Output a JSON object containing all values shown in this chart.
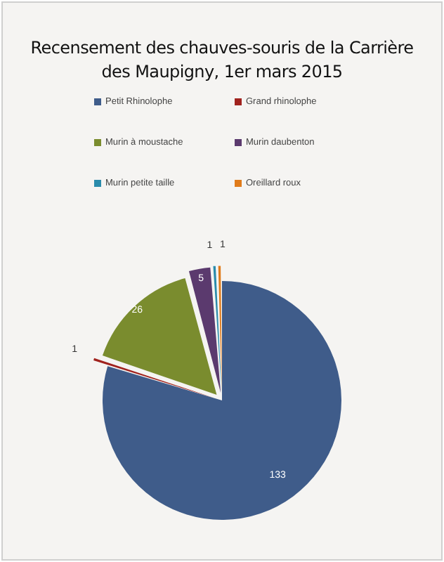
{
  "chart_data": {
    "type": "pie",
    "title": "Recensement des chauves-souris de la Carrière des Maupigny, 1er mars 2015",
    "categories": [
      "Petit Rhinolophe",
      "Grand rhinolophe",
      "Murin à moustache",
      "Murin daubenton",
      "Murin petite taille",
      "Oreillard roux"
    ],
    "values": [
      133,
      1,
      26,
      5,
      1,
      1
    ],
    "colors": [
      "#3f5c8a",
      "#a0221e",
      "#7a8c2e",
      "#5b3a6e",
      "#2a8bab",
      "#e07b1a"
    ],
    "data_labels": true,
    "legend": "top"
  }
}
